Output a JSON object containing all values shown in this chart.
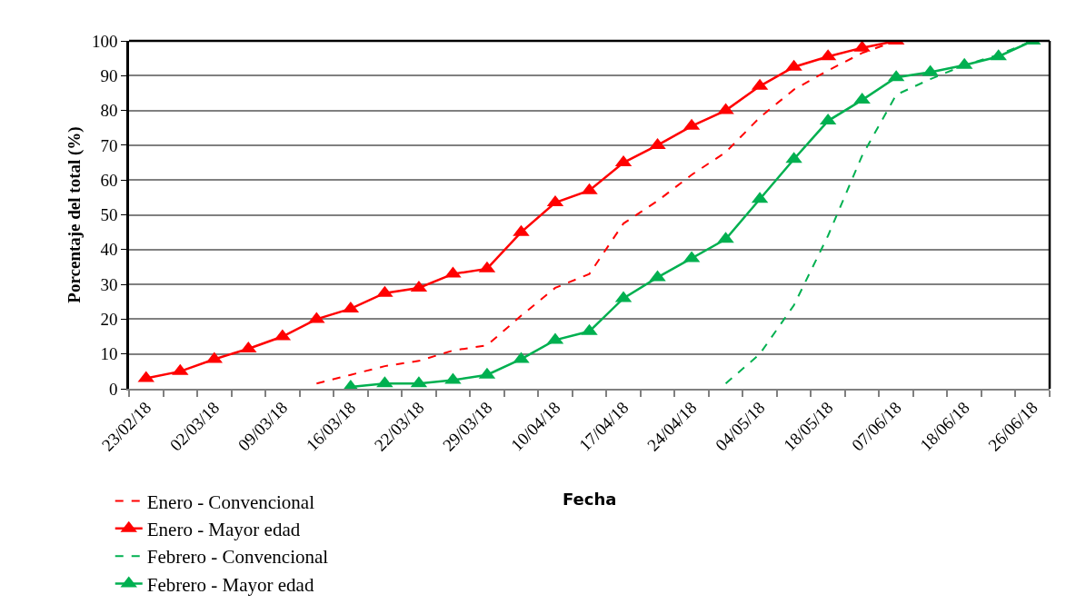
{
  "chart_data": {
    "type": "line",
    "ylabel": "Porcentaje del total (%)",
    "xlabel": "Fecha",
    "categories": [
      "23/02/18",
      null,
      "02/03/18",
      null,
      "09/03/18",
      null,
      "16/03/18",
      null,
      "22/03/18",
      null,
      "29/03/18",
      null,
      "10/04/18",
      null,
      "17/04/18",
      null,
      "24/04/18",
      null,
      "04/05/18",
      null,
      "18/05/18",
      null,
      "07/06/18",
      null,
      "18/06/18",
      null,
      "26/06/18"
    ],
    "series": [
      {
        "name": "Enero - Convencional",
        "color": "#ff0000",
        "line_style": "dashed",
        "marker": "none",
        "values": [
          null,
          null,
          null,
          null,
          null,
          1.5,
          4,
          6.5,
          8,
          11,
          12.5,
          21,
          29,
          33,
          47.5,
          54,
          61.5,
          68,
          78,
          86,
          91.5,
          96.5,
          100,
          null,
          null,
          null,
          null
        ]
      },
      {
        "name": "Enero - Mayor edad",
        "color": "#ff0000",
        "line_style": "solid",
        "marker": "triangle",
        "values": [
          3,
          5,
          8.5,
          11.5,
          15,
          20,
          23,
          27.5,
          29,
          33,
          34.5,
          45,
          53.5,
          57,
          65,
          70,
          75.5,
          80,
          87,
          92.5,
          95.5,
          98,
          100,
          null,
          null,
          null,
          null
        ]
      },
      {
        "name": "Febrero - Convencional",
        "color": "#00b050",
        "line_style": "dashed",
        "marker": "none",
        "values": [
          null,
          null,
          null,
          null,
          null,
          null,
          null,
          null,
          null,
          null,
          null,
          null,
          null,
          null,
          null,
          null,
          null,
          1.5,
          10,
          24,
          44,
          67,
          84.5,
          89,
          93,
          96,
          100
        ]
      },
      {
        "name": "Febrero - Mayor edad",
        "color": "#00b050",
        "line_style": "solid",
        "marker": "triangle",
        "values": [
          null,
          null,
          null,
          null,
          null,
          null,
          0.5,
          1.5,
          1.5,
          2.5,
          4,
          8.5,
          14,
          16.5,
          26,
          32,
          37.5,
          43,
          54.5,
          66,
          77,
          83,
          89.5,
          91,
          93,
          95.5,
          100
        ]
      }
    ],
    "ylim": [
      0,
      100
    ],
    "yticks": [
      0,
      10,
      20,
      30,
      40,
      50,
      60,
      70,
      80,
      90,
      100
    ],
    "grid": "y",
    "legend": "bottom"
  }
}
